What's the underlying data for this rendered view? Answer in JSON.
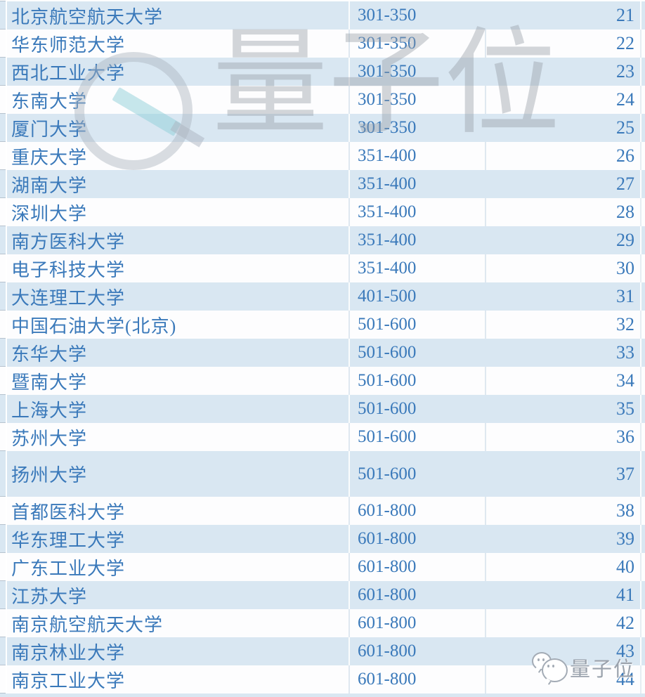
{
  "chart_data": {
    "type": "table",
    "title": "",
    "columns": [
      "university_name",
      "rank_range",
      "row_number"
    ],
    "rows": [
      [
        "北京航空航天大学",
        "301-350",
        21
      ],
      [
        "华东师范大学",
        "301-350",
        22
      ],
      [
        "西北工业大学",
        "301-350",
        23
      ],
      [
        "东南大学",
        "301-350",
        24
      ],
      [
        "厦门大学",
        "301-350",
        25
      ],
      [
        "重庆大学",
        "351-400",
        26
      ],
      [
        "湖南大学",
        "351-400",
        27
      ],
      [
        "深圳大学",
        "351-400",
        28
      ],
      [
        "南方医科大学",
        "351-400",
        29
      ],
      [
        "电子科技大学",
        "351-400",
        30
      ],
      [
        "大连理工大学",
        "401-500",
        31
      ],
      [
        "中国石油大学(北京)",
        "501-600",
        32
      ],
      [
        "东华大学",
        "501-600",
        33
      ],
      [
        "暨南大学",
        "501-600",
        34
      ],
      [
        "上海大学",
        "501-600",
        35
      ],
      [
        "苏州大学",
        "501-600",
        36
      ],
      [
        "扬州大学",
        "501-600",
        37
      ],
      [
        "首都医科大学",
        "601-800",
        38
      ],
      [
        "华东理工大学",
        "601-800",
        39
      ],
      [
        "广东工业大学",
        "601-800",
        40
      ],
      [
        "江苏大学",
        "601-800",
        41
      ],
      [
        "南京航空航天大学",
        "601-800",
        42
      ],
      [
        "南京林业大学",
        "601-800",
        43
      ],
      [
        "南京工业大学",
        "601-800",
        44
      ]
    ],
    "layout_hints": {
      "striped_rows": true,
      "stripe_color": "#d9e7f2",
      "header_row": false
    }
  },
  "table": {
    "rows": [
      {
        "university": "北京航空航天大学",
        "range": "301-350",
        "no": "21"
      },
      {
        "university": "华东师范大学",
        "range": "301-350",
        "no": "22"
      },
      {
        "university": "西北工业大学",
        "range": "301-350",
        "no": "23"
      },
      {
        "university": "东南大学",
        "range": "301-350",
        "no": "24"
      },
      {
        "university": "厦门大学",
        "range": "301-350",
        "no": "25"
      },
      {
        "university": "重庆大学",
        "range": "351-400",
        "no": "26"
      },
      {
        "university": "湖南大学",
        "range": "351-400",
        "no": "27"
      },
      {
        "university": "深圳大学",
        "range": "351-400",
        "no": "28"
      },
      {
        "university": "南方医科大学",
        "range": "351-400",
        "no": "29"
      },
      {
        "university": "电子科技大学",
        "range": "351-400",
        "no": "30"
      },
      {
        "university": "大连理工大学",
        "range": "401-500",
        "no": "31"
      },
      {
        "university": "中国石油大学(北京)",
        "range": "501-600",
        "no": "32"
      },
      {
        "university": "东华大学",
        "range": "501-600",
        "no": "33"
      },
      {
        "university": "暨南大学",
        "range": "501-600",
        "no": "34"
      },
      {
        "university": "上海大学",
        "range": "501-600",
        "no": "35"
      },
      {
        "university": "苏州大学",
        "range": "501-600",
        "no": "36"
      },
      {
        "university": "扬州大学",
        "range": "501-600",
        "no": "37"
      },
      {
        "university": "首都医科大学",
        "range": "601-800",
        "no": "38"
      },
      {
        "university": "华东理工大学",
        "range": "601-800",
        "no": "39"
      },
      {
        "university": "广东工业大学",
        "range": "601-800",
        "no": "40"
      },
      {
        "university": "江苏大学",
        "range": "601-800",
        "no": "41"
      },
      {
        "university": "南京航空航天大学",
        "range": "601-800",
        "no": "42"
      },
      {
        "university": "南京林业大学",
        "range": "601-800",
        "no": "43"
      },
      {
        "university": "南京工业大学",
        "range": "601-800",
        "no": "44"
      }
    ]
  },
  "watermark": {
    "text": "量子位"
  },
  "footer": {
    "logo_text": "量子位"
  },
  "colors": {
    "row_stripe_blue": "#d9e7f2",
    "row_white": "#fdfdfe",
    "text_blue": "#3a79ba",
    "watermark_gray": "#969da8",
    "logo_teal": "#8fd0d8",
    "footer_gray": "#9aa2ac"
  }
}
